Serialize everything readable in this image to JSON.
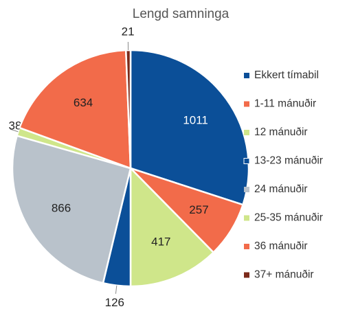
{
  "chart_data": {
    "type": "pie",
    "title": "Lengd samninga",
    "categories": [
      "Ekkert tímabil",
      "1-11 mánuðir",
      "12 mánuðir",
      "13-23 mánuðir",
      "24 mánuðir",
      "25-35 mánuðir",
      "36 mánuðir",
      "37+ mánuðir"
    ],
    "values": [
      1011,
      257,
      417,
      126,
      866,
      38,
      634,
      21
    ],
    "colors": [
      "#0b4f98",
      "#f26b4a",
      "#cfe68a",
      "#0b4f98",
      "#b9c2cb",
      "#cfe68a",
      "#f26b4a",
      "#7b2a1a"
    ],
    "legend": "right"
  }
}
